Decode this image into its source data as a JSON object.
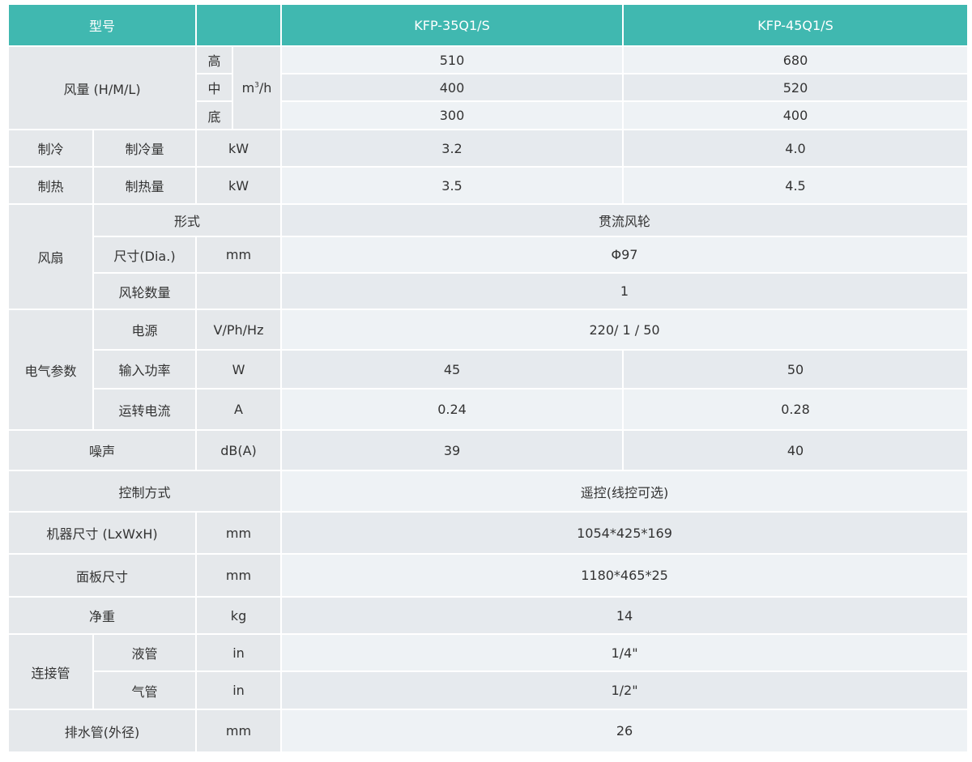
{
  "header": {
    "model_label": "型号",
    "models": [
      "KFP-35Q1/S",
      "KFP-45Q1/S"
    ]
  },
  "airflow": {
    "label": "风量 (H/M/L)",
    "unit_base": "m",
    "unit_sup": "3",
    "unit_tail": "/h",
    "levels": [
      {
        "name": "高",
        "v1": "510",
        "v2": "680"
      },
      {
        "name": "中",
        "v1": "400",
        "v2": "520"
      },
      {
        "name": "底",
        "v1": "300",
        "v2": "400"
      }
    ]
  },
  "cooling": {
    "group": "制冷",
    "item": "制冷量",
    "unit": "kW",
    "v1": "3.2",
    "v2": "4.0"
  },
  "heating": {
    "group": "制热",
    "item": "制热量",
    "unit": "kW",
    "v1": "3.5",
    "v2": "4.5"
  },
  "fan": {
    "group": "风扇",
    "type": {
      "item": "形式",
      "value": "贯流风轮"
    },
    "size": {
      "item": "尺寸(Dia.)",
      "unit": "mm",
      "value": "Φ97"
    },
    "count": {
      "item": "风轮数量",
      "unit": "",
      "value": "1"
    }
  },
  "electric": {
    "group": "电气参数",
    "power_supply": {
      "item": "电源",
      "unit": "V/Ph/Hz",
      "value": "220/ 1 / 50"
    },
    "input_power": {
      "item": "输入功率",
      "unit": "W",
      "v1": "45",
      "v2": "50"
    },
    "current": {
      "item": "运转电流",
      "unit": "A",
      "v1": "0.24",
      "v2": "0.28"
    }
  },
  "noise": {
    "item": "噪声",
    "unit": "dB(A)",
    "v1": "39",
    "v2": "40"
  },
  "control": {
    "item": "控制方式",
    "value": "遥控(线控可选)"
  },
  "unit_size": {
    "item": "机器尺寸 (LxWxH)",
    "unit": "mm",
    "value": "1054*425*169"
  },
  "panel_size": {
    "item": "面板尺寸",
    "unit": "mm",
    "value": "1180*465*25"
  },
  "net_weight": {
    "item": "净重",
    "unit": "kg",
    "value": "14"
  },
  "piping": {
    "group": "连接管",
    "liquid": {
      "item": "液管",
      "unit": "in",
      "value": "1/4\""
    },
    "gas": {
      "item": "气管",
      "unit": "in",
      "value": "1/2\""
    }
  },
  "drain": {
    "item": "排水管(外径)",
    "unit": "mm",
    "value": "26"
  },
  "colors": {
    "header": "#40b8b0",
    "label_cell": "#e5e8eb",
    "row_light": "#eef2f5",
    "row_dark": "#e6eaee"
  }
}
